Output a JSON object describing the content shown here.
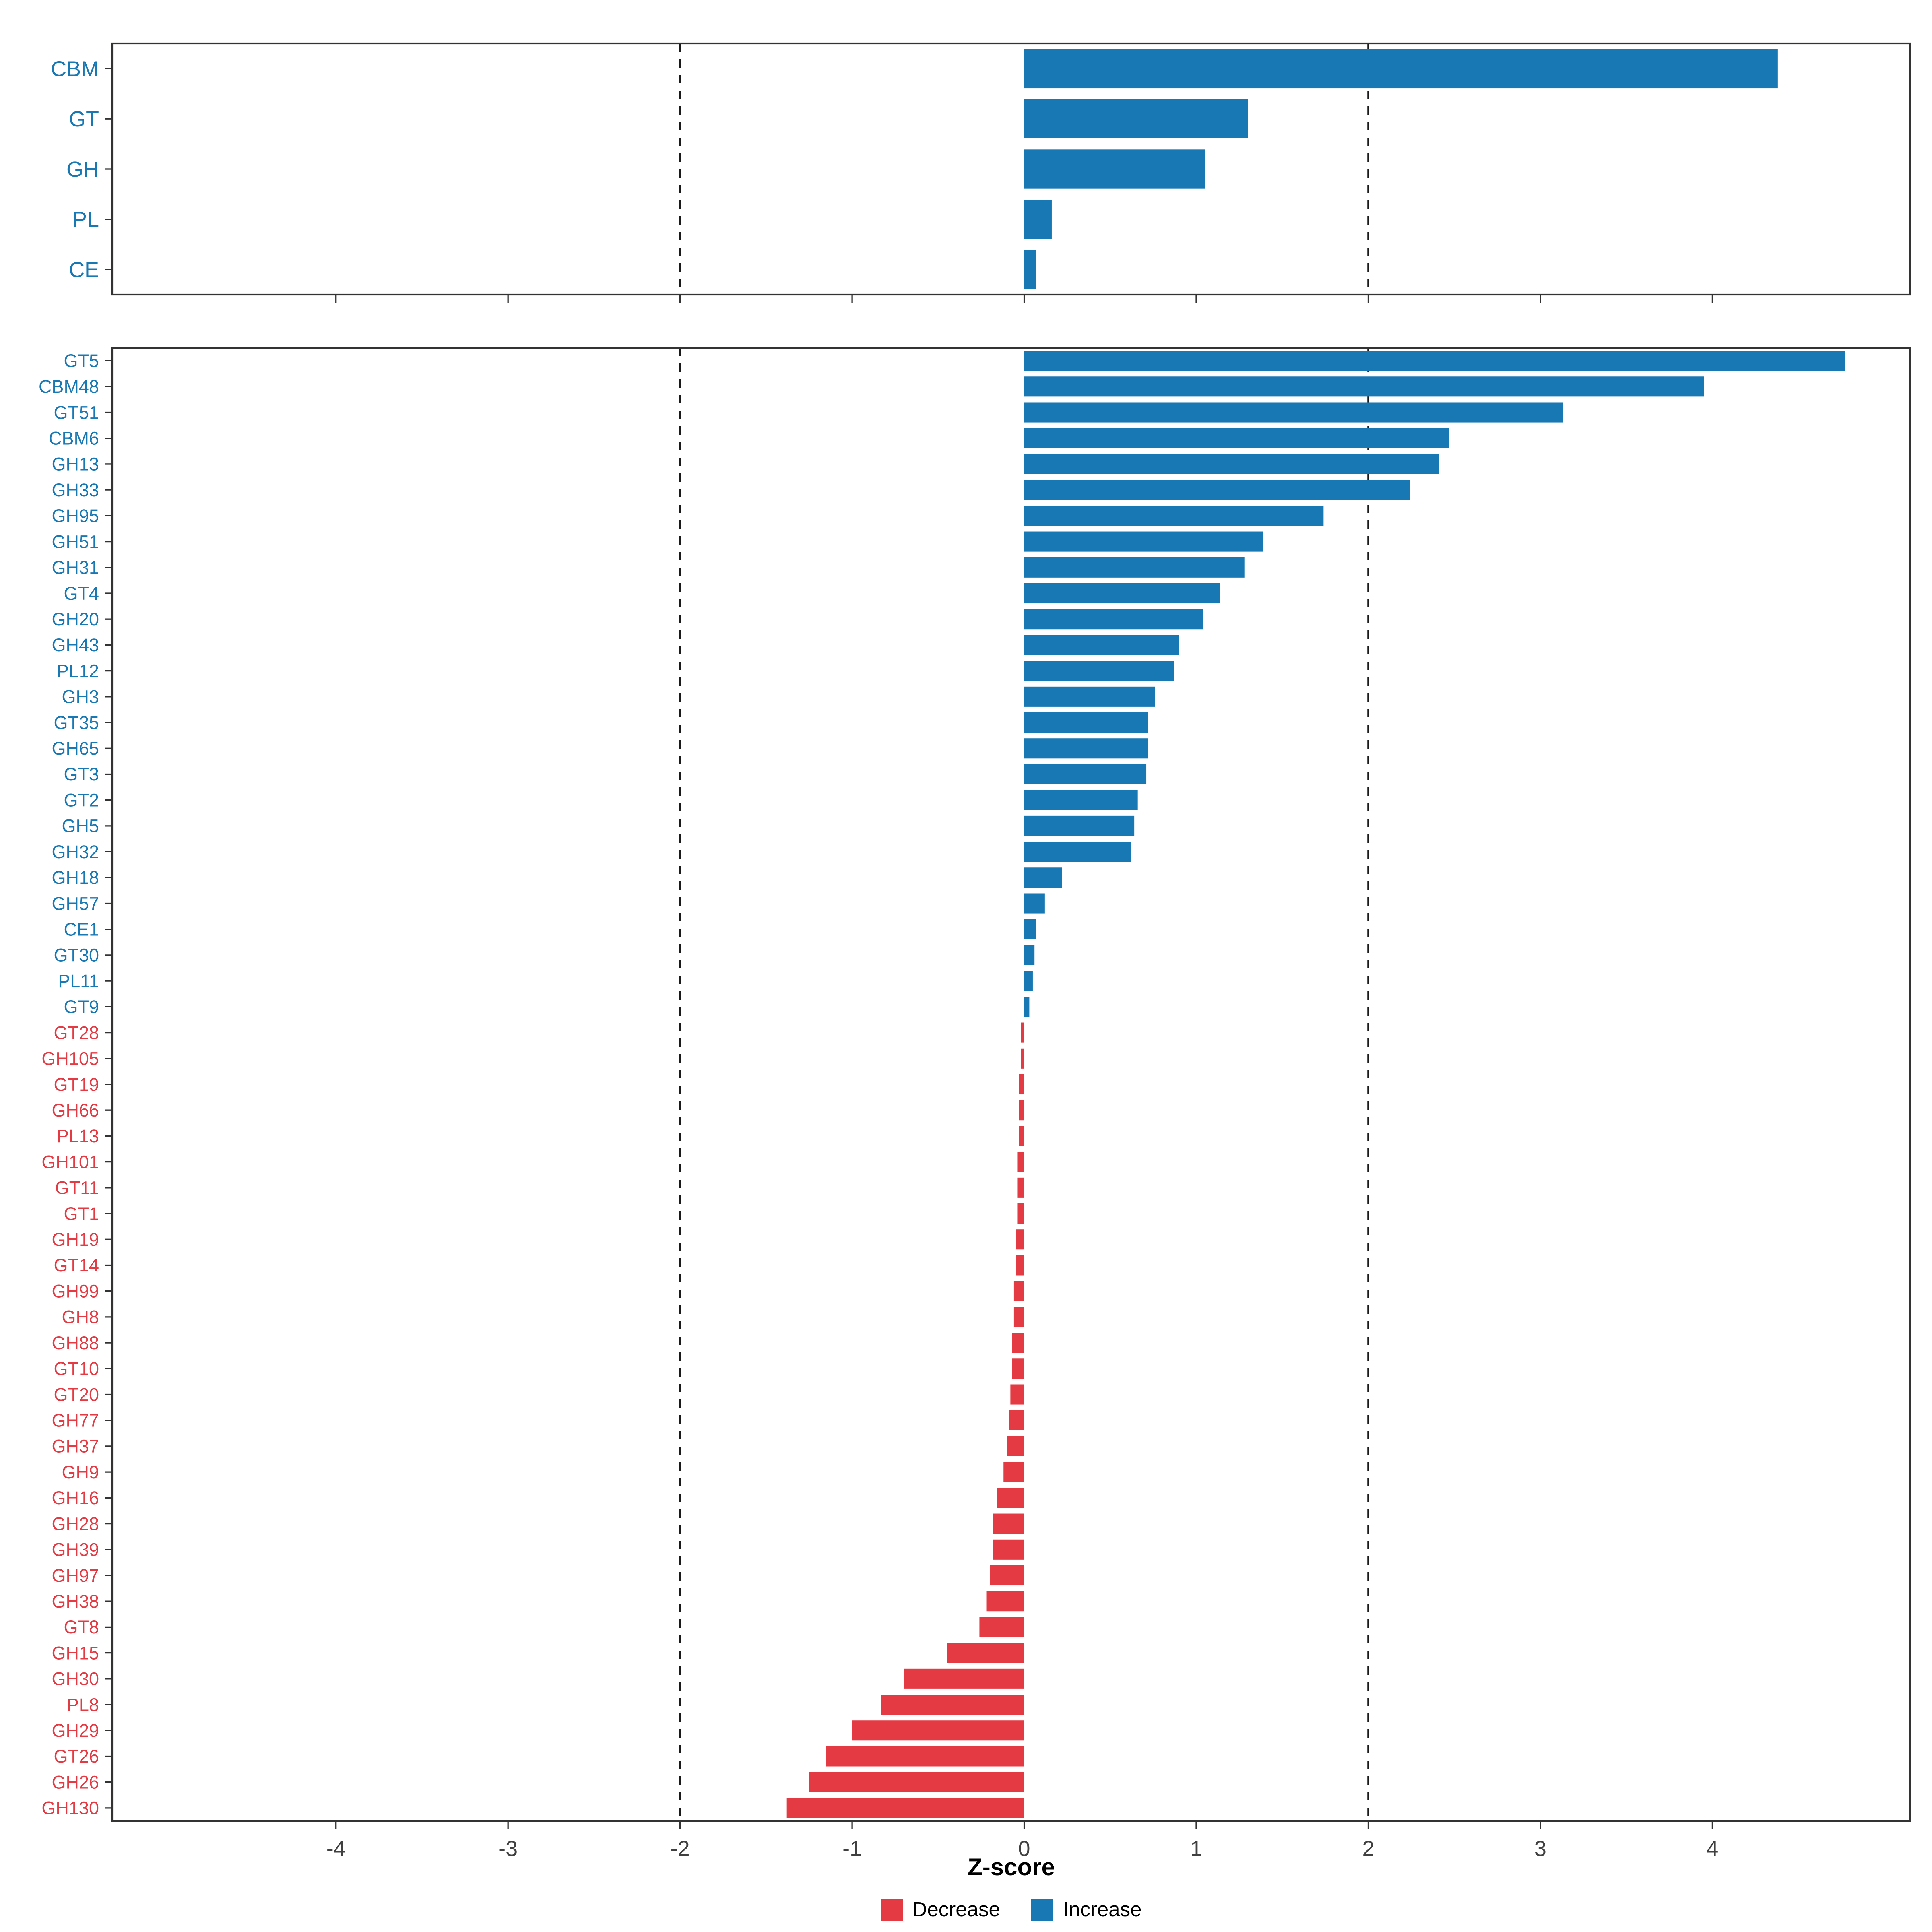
{
  "colors": {
    "increase": "#1878b4",
    "decrease": "#e43a43",
    "axis_text": "#404040",
    "panel_border": "#333333",
    "dashed_line": "#1a1a1a",
    "background": "#ffffff"
  },
  "chart_data": [
    {
      "type": "bar",
      "orientation": "horizontal",
      "panel": "top",
      "title": "",
      "categories": [
        "CBM",
        "GT",
        "GH",
        "PL",
        "CE"
      ],
      "values": [
        4.38,
        1.3,
        1.05,
        0.16,
        0.07
      ],
      "color_rule": "blue if value >= 0 else red",
      "xlim": [
        -5.3,
        5.15
      ],
      "dashed_lines": [
        -2,
        2
      ],
      "grid": false
    },
    {
      "type": "bar",
      "orientation": "horizontal",
      "panel": "bottom",
      "xlabel": "Z-score",
      "categories": [
        "GT5",
        "CBM48",
        "GT51",
        "CBM6",
        "GH13",
        "GH33",
        "GH95",
        "GH51",
        "GH31",
        "GT4",
        "GH20",
        "GH43",
        "PL12",
        "GH3",
        "GT35",
        "GH65",
        "GT3",
        "GT2",
        "GH5",
        "GH32",
        "GH18",
        "GH57",
        "CE1",
        "GT30",
        "PL11",
        "GT9",
        "GT28",
        "GH105",
        "GT19",
        "GH66",
        "PL13",
        "GH101",
        "GT11",
        "GT1",
        "GH19",
        "GT14",
        "GH99",
        "GH8",
        "GH88",
        "GT10",
        "GT20",
        "GH77",
        "GH37",
        "GH9",
        "GH16",
        "GH28",
        "GH39",
        "GH97",
        "GH38",
        "GT8",
        "GH15",
        "GH30",
        "PL8",
        "GH29",
        "GT26",
        "GH26",
        "GH130"
      ],
      "values": [
        4.77,
        3.95,
        3.13,
        2.47,
        2.41,
        2.24,
        1.74,
        1.39,
        1.28,
        1.14,
        1.04,
        0.9,
        0.87,
        0.76,
        0.72,
        0.72,
        0.71,
        0.66,
        0.64,
        0.62,
        0.22,
        0.12,
        0.07,
        0.06,
        0.05,
        0.03,
        -0.02,
        -0.02,
        -0.03,
        -0.03,
        -0.03,
        -0.04,
        -0.04,
        -0.04,
        -0.05,
        -0.05,
        -0.06,
        -0.06,
        -0.07,
        -0.07,
        -0.08,
        -0.09,
        -0.1,
        -0.12,
        -0.16,
        -0.18,
        -0.18,
        -0.2,
        -0.22,
        -0.26,
        -0.45,
        -0.7,
        -0.83,
        -1.0,
        -1.15,
        -1.25,
        -1.38
      ],
      "color_rule": "blue if value >= 0 else red",
      "xticks": [
        -4,
        -3,
        -2,
        -1,
        0,
        1,
        2,
        3,
        4
      ],
      "xlim": [
        -5.3,
        5.15
      ],
      "dashed_lines": [
        -2,
        2
      ],
      "grid": false,
      "legend_position": "bottom",
      "legend": [
        {
          "label": "Decrease",
          "color": "#e43a43"
        },
        {
          "label": "Increase",
          "color": "#1878b4"
        }
      ]
    }
  ]
}
